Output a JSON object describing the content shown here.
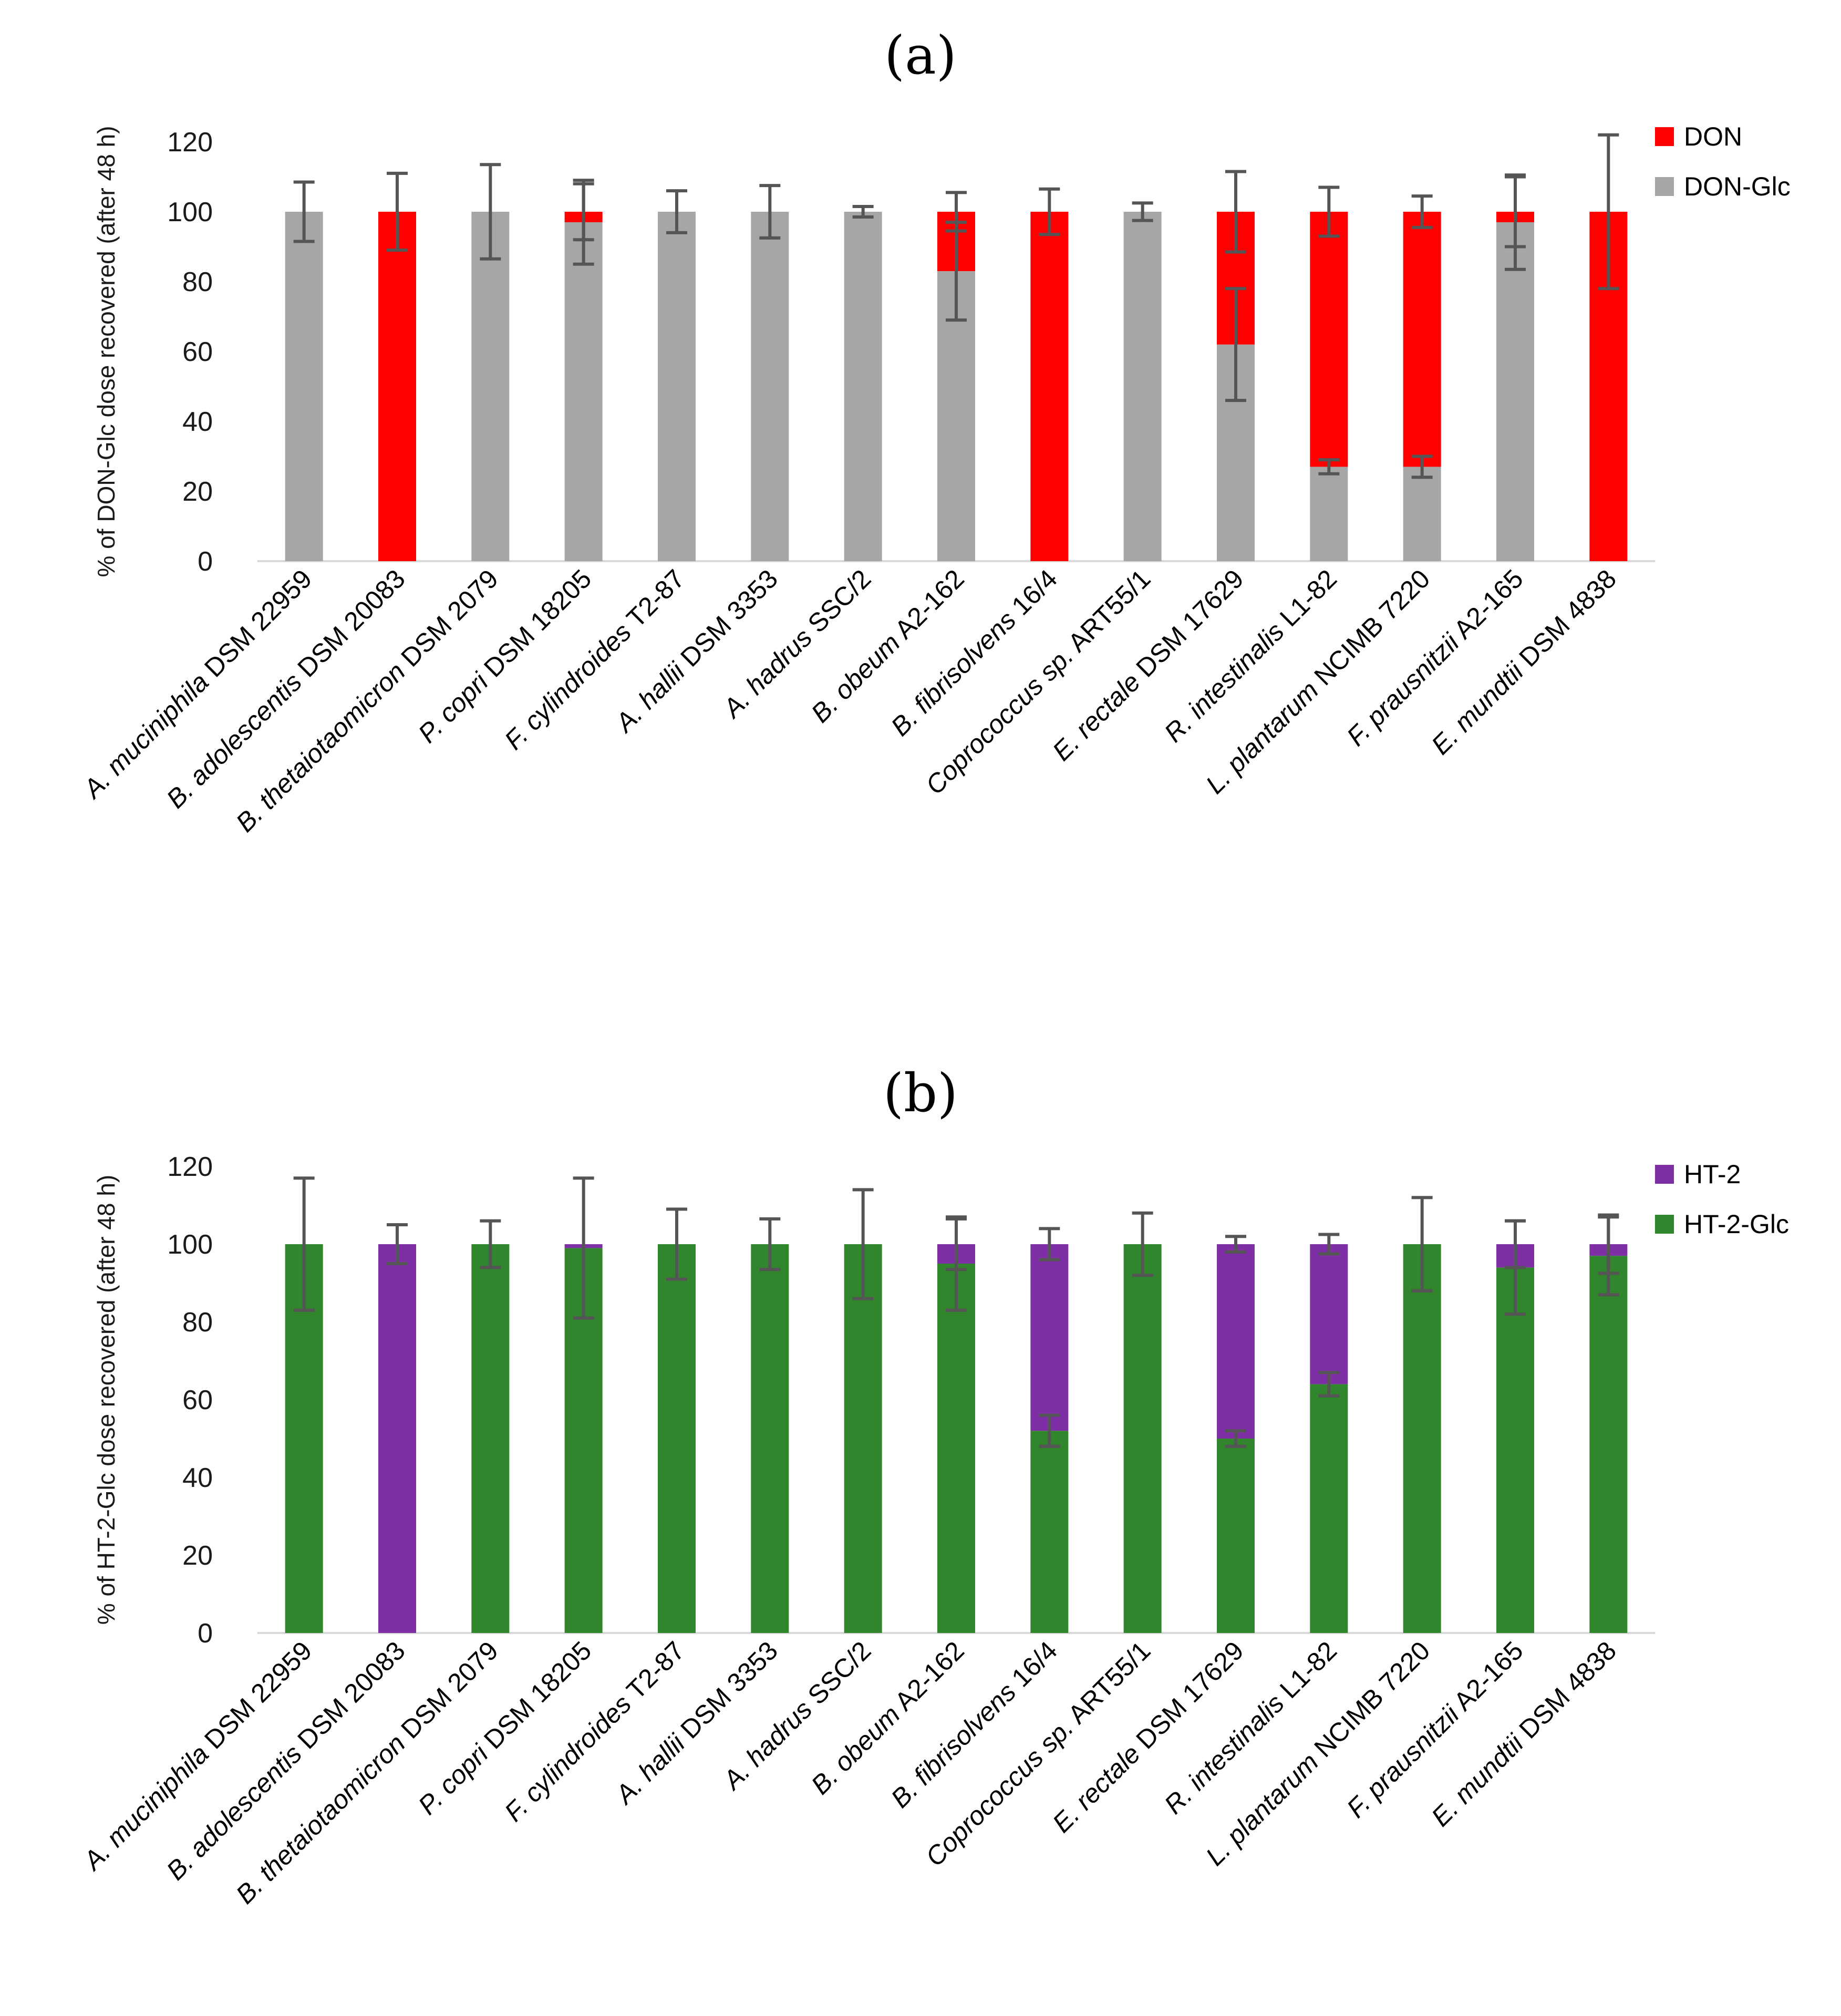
{
  "chart_data": [
    {
      "type": "bar",
      "stacked": true,
      "title": "(a)",
      "ylabel": "% of DON-Glc dose  recovered (after 48 h)",
      "ylim": [
        0,
        120
      ],
      "yticks": [
        0,
        20,
        40,
        60,
        80,
        100,
        120
      ],
      "legend": "top-right",
      "categories": [
        [
          "A. muciniphila",
          " DSM 22959"
        ],
        [
          "B. adolescentis",
          " DSM 20083"
        ],
        [
          "B. thetaiotaomicron",
          " DSM 2079"
        ],
        [
          "P. copri",
          " DSM 18205"
        ],
        [
          "F. cylindroides",
          " T2-87"
        ],
        [
          "A. hallii",
          " DSM 3353"
        ],
        [
          "A. hadrus",
          " SSC/2"
        ],
        [
          "B. obeum",
          " A2-162"
        ],
        [
          "B. fibrisolvens",
          " 16/4"
        ],
        [
          "Coprococcus sp.",
          " ART55/1"
        ],
        [
          "E. rectale",
          " DSM 17629"
        ],
        [
          "R. intestinalis",
          " L1-82"
        ],
        [
          "L. plantarum",
          " NCIMB 7220"
        ],
        [
          "F. prausnitzii",
          " A2-165"
        ],
        [
          "E. mundtii",
          " DSM 4838"
        ]
      ],
      "series": [
        {
          "name": "DON-Glc",
          "color": "#a6a6a6",
          "values": [
            100,
            0,
            100,
            97,
            100,
            100,
            100,
            83,
            0,
            100,
            62,
            27,
            27,
            97,
            0
          ],
          "errors": [
            8.5,
            0,
            13.5,
            12,
            6,
            7.5,
            1.5,
            14,
            0,
            2.5,
            16,
            2,
            3,
            13.5,
            0
          ]
        },
        {
          "name": "DON",
          "color": "#ff0000",
          "values": [
            0,
            100,
            0,
            3,
            0,
            0,
            0,
            17,
            100,
            0,
            38,
            73,
            73,
            3,
            100
          ],
          "errors": [
            0,
            11,
            0,
            8,
            0,
            0,
            0,
            5.5,
            6.5,
            0,
            11.5,
            7,
            4.5,
            10,
            22
          ]
        }
      ]
    },
    {
      "type": "bar",
      "stacked": true,
      "title": "(b)",
      "ylabel": "% of HT-2-Glc dose recovered  (after 48 h)",
      "ylim": [
        0,
        120
      ],
      "yticks": [
        0,
        20,
        40,
        60,
        80,
        100,
        120
      ],
      "legend": "top-right",
      "categories": [
        [
          "A. muciniphila",
          " DSM 22959"
        ],
        [
          "B. adolescentis",
          " DSM 20083"
        ],
        [
          "B. thetaiotaomicron",
          " DSM 2079"
        ],
        [
          "P. copri",
          " DSM 18205"
        ],
        [
          "F. cylindroides",
          " T2-87"
        ],
        [
          "A. hallii",
          " DSM 3353"
        ],
        [
          "A. hadrus",
          " SSC/2"
        ],
        [
          "B. obeum",
          " A2-162"
        ],
        [
          "B. fibrisolvens",
          " 16/4"
        ],
        [
          "Coprococcus sp.",
          " ART55/1"
        ],
        [
          "E. rectale",
          " DSM 17629"
        ],
        [
          "R. intestinalis",
          " L1-82"
        ],
        [
          "L. plantarum",
          " NCIMB 7220"
        ],
        [
          "F. prausnitzii",
          " A2-165"
        ],
        [
          "E. mundtii",
          " DSM 4838"
        ]
      ],
      "series": [
        {
          "name": "HT-2-Glc",
          "color": "#31852c",
          "values": [
            100,
            0,
            100,
            99,
            100,
            100,
            100,
            95,
            52,
            100,
            50,
            64,
            100,
            94,
            97
          ],
          "errors": [
            17,
            0,
            6,
            18,
            9,
            6.5,
            14,
            12,
            4,
            8,
            2,
            3,
            12,
            12,
            10
          ]
        },
        {
          "name": "HT-2",
          "color": "#7f2fa5",
          "values": [
            0,
            100,
            0,
            1,
            0,
            0,
            0,
            5,
            48,
            0,
            50,
            36,
            0,
            6,
            3
          ],
          "errors": [
            0,
            5,
            0,
            0,
            0,
            0,
            0,
            6.5,
            4,
            0,
            2,
            2.5,
            0,
            6,
            7.5
          ]
        }
      ]
    }
  ]
}
